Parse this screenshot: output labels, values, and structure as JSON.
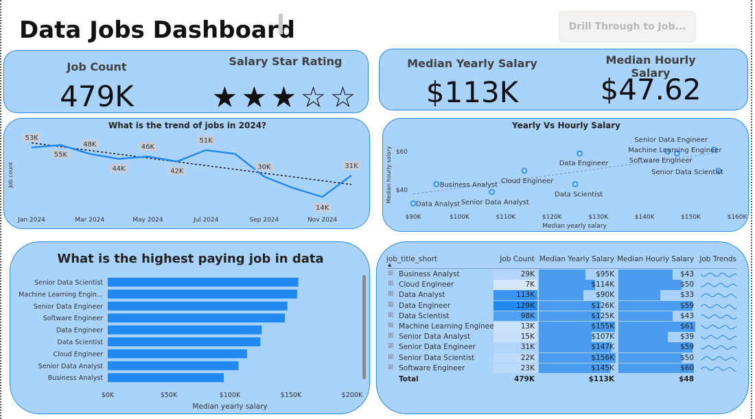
{
  "header": {
    "title": "Data Jobs Dashboard",
    "drill_label": "Drill Through to Job..."
  },
  "kpis": {
    "job_count_label": "Job Count",
    "job_count_value": "479K",
    "rating_label": "Salary Star Rating",
    "rating_filled": 3,
    "rating_total": 5,
    "median_yearly_label": "Median Yearly Salary",
    "median_yearly_value": "$113K",
    "median_hourly_label": "Median Hourly Salary",
    "median_hourly_value": "$47.62"
  },
  "colors": {
    "card_bg": "#a9d3fb",
    "card_border": "#2b8ae8",
    "accent": "#2389f2",
    "dark_blue": "#1f6fd1"
  },
  "trend": {
    "title": "What is the trend of jobs in 2024?",
    "ylabel": "Job count",
    "x_ticks": [
      "Jan 2024",
      "Mar 2024",
      "May 2024",
      "Jul 2024",
      "Sep 2024",
      "Nov 2024"
    ]
  },
  "scatter_chart": {
    "title": "Yearly Vs Hourly Salary",
    "xlabel": "Median yearly salary",
    "ylabel": "Median hourly salary",
    "x_ticks": [
      "$90K",
      "$100K",
      "$110K",
      "$120K",
      "$130K",
      "$140K",
      "$150K",
      "$160K"
    ],
    "y_ticks": [
      "$40",
      "$60"
    ]
  },
  "bar_chart_meta": {
    "title": "What is the highest paying job in data",
    "xlabel": "Median yearly salary",
    "x_ticks": [
      "$0K",
      "$50K",
      "$100K",
      "$150K",
      "$200K"
    ]
  },
  "chart_data": [
    {
      "type": "line",
      "title": "What is the trend of jobs in 2024?",
      "ylabel": "Job count",
      "x": [
        "Jan 2024",
        "Feb 2024",
        "Mar 2024",
        "Apr 2024",
        "May 2024",
        "Jun 2024",
        "Jul 2024",
        "Aug 2024",
        "Sep 2024",
        "Oct 2024",
        "Nov 2024",
        "Dec 2024"
      ],
      "values": [
        53,
        55,
        48,
        44,
        46,
        42,
        51,
        48,
        30,
        21,
        14,
        31
      ],
      "data_labels": [
        "53K",
        "55K",
        "48K",
        "44K",
        "46K",
        "42K",
        "51K",
        "",
        "30K",
        "",
        "14K",
        "31K"
      ],
      "trendline": true
    },
    {
      "type": "scatter",
      "title": "Yearly Vs Hourly Salary",
      "xlabel": "Median yearly salary",
      "ylabel": "Median hourly salary",
      "xlim": [
        90,
        160
      ],
      "points": [
        {
          "label": "Data Analyst",
          "x": 90,
          "y": 33
        },
        {
          "label": "Business Analyst",
          "x": 95,
          "y": 43
        },
        {
          "label": "Senior Data Analyst",
          "x": 107,
          "y": 39
        },
        {
          "label": "Cloud Engineer",
          "x": 114,
          "y": 50
        },
        {
          "label": "Data Scientist",
          "x": 125,
          "y": 43
        },
        {
          "label": "Data Engineer",
          "x": 126,
          "y": 59
        },
        {
          "label": "Software Engineer",
          "x": 145,
          "y": 60
        },
        {
          "label": "Senior Data Engineer",
          "x": 147,
          "y": 59
        },
        {
          "label": "Machine Learning Engineer",
          "x": 155,
          "y": 61
        },
        {
          "label": "Senior Data Scientist",
          "x": 156,
          "y": 50
        }
      ],
      "trendline": true
    },
    {
      "type": "bar",
      "title": "What is the highest paying job in data",
      "xlabel": "Median yearly salary",
      "orientation": "horizontal",
      "xlim": [
        0,
        200
      ],
      "categories": [
        "Senior Data Scientist",
        "Machine Learning Engin...",
        "Senior Data Engineer",
        "Software Engineer",
        "Data Engineer",
        "Data Scientist",
        "Cloud Engineer",
        "Senior Data Analyst",
        "Business Analyst"
      ],
      "values": [
        156,
        155,
        147,
        145,
        126,
        125,
        114,
        107,
        95
      ]
    }
  ],
  "table": {
    "headers": [
      "job_title_short",
      "Job Count",
      "Median Yearly Salary",
      "Median Hourly Salary",
      "Job Trends"
    ],
    "rows": [
      {
        "title": "Business Analyst",
        "count": "29K",
        "yearly": "$95K",
        "hourly": "$43",
        "count_n": 29,
        "yearly_n": 95,
        "hourly_n": 43
      },
      {
        "title": "Cloud Engineer",
        "count": "7K",
        "yearly": "$114K",
        "hourly": "$50",
        "count_n": 7,
        "yearly_n": 114,
        "hourly_n": 50
      },
      {
        "title": "Data Analyst",
        "count": "113K",
        "yearly": "$90K",
        "hourly": "$33",
        "count_n": 113,
        "yearly_n": 90,
        "hourly_n": 33
      },
      {
        "title": "Data Engineer",
        "count": "129K",
        "yearly": "$126K",
        "hourly": "$59",
        "count_n": 129,
        "yearly_n": 126,
        "hourly_n": 59
      },
      {
        "title": "Data Scientist",
        "count": "98K",
        "yearly": "$125K",
        "hourly": "$43",
        "count_n": 98,
        "yearly_n": 125,
        "hourly_n": 43
      },
      {
        "title": "Machine Learning Engineer",
        "count": "13K",
        "yearly": "$155K",
        "hourly": "$61",
        "count_n": 13,
        "yearly_n": 155,
        "hourly_n": 61
      },
      {
        "title": "Senior Data Analyst",
        "count": "15K",
        "yearly": "$107K",
        "hourly": "$39",
        "count_n": 15,
        "yearly_n": 107,
        "hourly_n": 39
      },
      {
        "title": "Senior Data Engineer",
        "count": "31K",
        "yearly": "$147K",
        "hourly": "$59",
        "count_n": 31,
        "yearly_n": 147,
        "hourly_n": 59
      },
      {
        "title": "Senior Data Scientist",
        "count": "22K",
        "yearly": "$156K",
        "hourly": "$50",
        "count_n": 22,
        "yearly_n": 156,
        "hourly_n": 50
      },
      {
        "title": "Software Engineer",
        "count": "23K",
        "yearly": "$145K",
        "hourly": "$60",
        "count_n": 23,
        "yearly_n": 145,
        "hourly_n": 60
      }
    ],
    "total": {
      "title": "Total",
      "count": "479K",
      "yearly": "$113K",
      "hourly": "$48"
    }
  }
}
